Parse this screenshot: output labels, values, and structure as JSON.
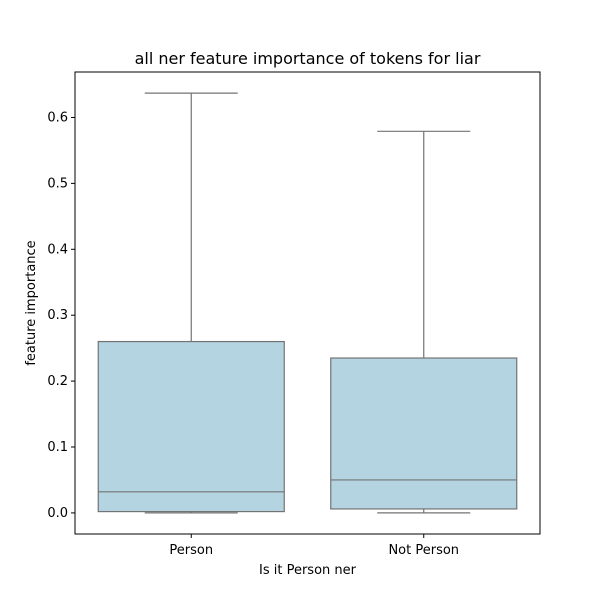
{
  "chart_data": {
    "type": "box",
    "title": "all ner feature importance of tokens for liar",
    "xlabel": "Is it Person ner",
    "ylabel": "feature importance",
    "categories": [
      "Person",
      "Not Person"
    ],
    "boxes": [
      {
        "category": "Person",
        "min": 0.0,
        "q1": 0.002,
        "median": 0.032,
        "q3": 0.26,
        "max": 0.637
      },
      {
        "category": "Not Person",
        "min": 0.0,
        "q1": 0.006,
        "median": 0.05,
        "q3": 0.235,
        "max": 0.579
      }
    ],
    "yticks": [
      0.0,
      0.1,
      0.2,
      0.3,
      0.4,
      0.5,
      0.6
    ],
    "ytick_labels": [
      "0.0",
      "0.1",
      "0.2",
      "0.3",
      "0.4",
      "0.5",
      "0.6"
    ],
    "ylim": [
      -0.032,
      0.669
    ],
    "grid": false,
    "colors": {
      "box_fill": "#b3d4e0",
      "box_line": "#737373",
      "axis": "#000000"
    }
  }
}
